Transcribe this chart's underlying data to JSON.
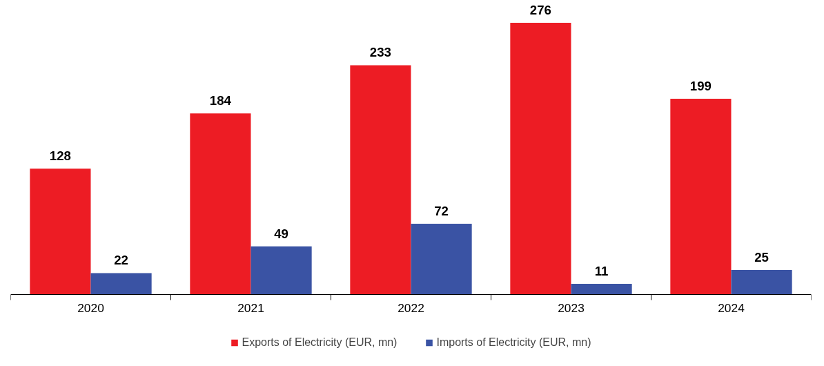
{
  "chart_data": {
    "type": "bar",
    "categories": [
      "2020",
      "2021",
      "2022",
      "2023",
      "2024"
    ],
    "series": [
      {
        "name": "Exports of Electricity (EUR, mn)",
        "color": "#ed1c24",
        "values": [
          128,
          184,
          233,
          276,
          199
        ]
      },
      {
        "name": "Imports of Electricity (EUR, mn)",
        "color": "#3a53a4",
        "values": [
          22,
          49,
          72,
          11,
          25
        ]
      }
    ],
    "data_labels": true,
    "legend": "bottom"
  }
}
